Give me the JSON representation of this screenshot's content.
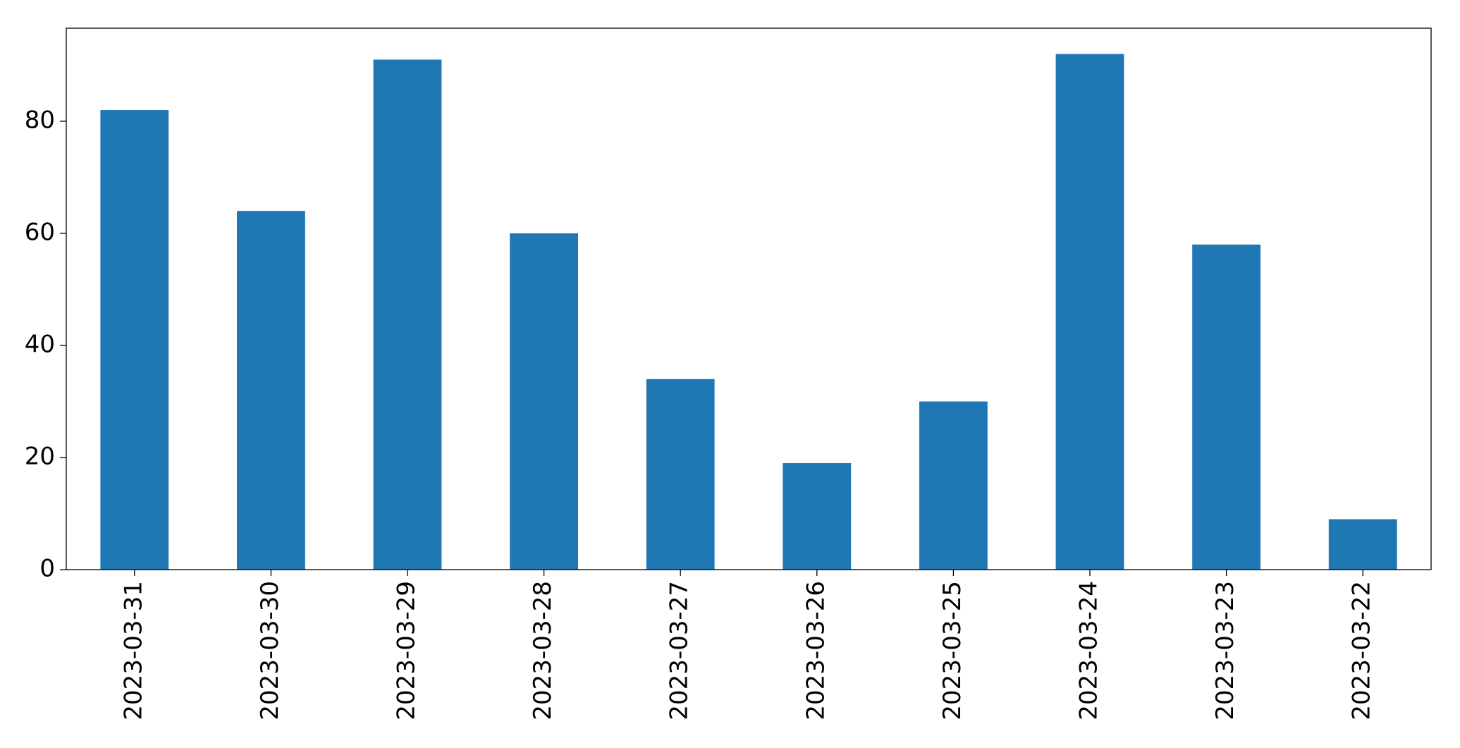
{
  "chart_data": {
    "type": "bar",
    "categories": [
      "2023-03-31",
      "2023-03-30",
      "2023-03-29",
      "2023-03-28",
      "2023-03-27",
      "2023-03-26",
      "2023-03-25",
      "2023-03-24",
      "2023-03-23",
      "2023-03-22"
    ],
    "values": [
      82,
      64,
      91,
      60,
      34,
      19,
      30,
      92,
      58,
      9
    ],
    "color": "#1f77b4",
    "ylim": [
      0,
      96.6
    ],
    "yticks": [
      0,
      20,
      40,
      60,
      80
    ],
    "grid": false
  }
}
